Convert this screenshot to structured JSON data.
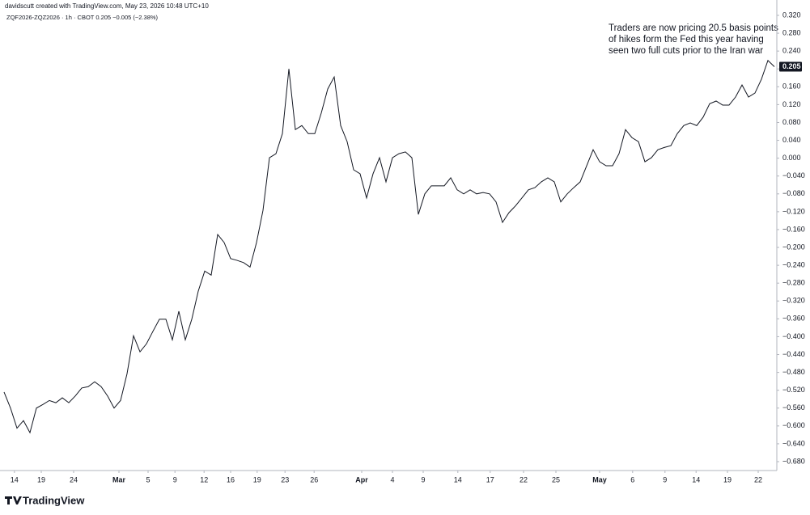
{
  "header": {
    "credit": "davidscutt created with TradingView.com, May 23, 2026 10:48 UTC+10",
    "logo": "TradingView"
  },
  "chart_data": {
    "type": "line",
    "subtitle": "ZQF2026-ZQZ2026 · 1h · CBOT  0.205  −0.005 (−2.38%)",
    "annotation": [
      "Traders are now pricing 20.5 basis points",
      "of hikes form the Fed this year having",
      "seen two full cuts prior to the Iran war"
    ],
    "color": "#131722",
    "values": [
      -0.524,
      -0.56,
      -0.605,
      -0.588,
      -0.615,
      -0.56,
      -0.552,
      -0.543,
      -0.548,
      -0.537,
      -0.548,
      -0.533,
      -0.515,
      -0.512,
      -0.501,
      -0.512,
      -0.533,
      -0.56,
      -0.543,
      -0.483,
      -0.398,
      -0.434,
      -0.416,
      -0.388,
      -0.361,
      -0.361,
      -0.407,
      -0.343,
      -0.407,
      -0.361,
      -0.298,
      -0.253,
      -0.262,
      -0.171,
      -0.189,
      -0.225,
      -0.229,
      -0.234,
      -0.244,
      -0.189,
      -0.117,
      0.001,
      0.01,
      0.055,
      0.2,
      0.064,
      0.073,
      0.055,
      0.055,
      0.101,
      0.155,
      0.182,
      0.073,
      0.037,
      -0.026,
      -0.035,
      -0.089,
      -0.035,
      0.001,
      -0.053,
      0.001,
      0.01,
      0.014,
      0.001,
      -0.126,
      -0.08,
      -0.062,
      -0.062,
      -0.062,
      -0.044,
      -0.071,
      -0.08,
      -0.071,
      -0.08,
      -0.077,
      -0.08,
      -0.098,
      -0.144,
      -0.122,
      -0.107,
      -0.089,
      -0.071,
      -0.066,
      -0.053,
      -0.044,
      -0.053,
      -0.098,
      -0.08,
      -0.066,
      -0.053,
      -0.017,
      0.019,
      -0.008,
      -0.017,
      -0.017,
      0.01,
      0.064,
      0.046,
      0.037,
      -0.008,
      0.001,
      0.019,
      0.024,
      0.028,
      0.055,
      0.073,
      0.079,
      0.073,
      0.092,
      0.122,
      0.128,
      0.119,
      0.119,
      0.137,
      0.164,
      0.137,
      0.146,
      0.177,
      0.219,
      0.205
    ],
    "xlim": [
      0,
      120
    ],
    "xticks": [
      {
        "value": 1.6,
        "label": "14"
      },
      {
        "value": 5.75,
        "label": "19"
      },
      {
        "value": 10.75,
        "label": "24"
      },
      {
        "value": 17.75,
        "label": "Mar"
      },
      {
        "value": 22.25,
        "label": "5"
      },
      {
        "value": 26.4,
        "label": "9"
      },
      {
        "value": 30.9,
        "label": "12"
      },
      {
        "value": 35,
        "label": "16"
      },
      {
        "value": 39.1,
        "label": "19"
      },
      {
        "value": 43.4,
        "label": "23"
      },
      {
        "value": 47.9,
        "label": "26"
      },
      {
        "value": 55.25,
        "label": "Apr"
      },
      {
        "value": 60,
        "label": "4"
      },
      {
        "value": 64.75,
        "label": "9"
      },
      {
        "value": 70.1,
        "label": "14"
      },
      {
        "value": 75.1,
        "label": "17"
      },
      {
        "value": 80.25,
        "label": "22"
      },
      {
        "value": 85.25,
        "label": "25"
      },
      {
        "value": 92,
        "label": "May"
      },
      {
        "value": 97.1,
        "label": "6"
      },
      {
        "value": 102.1,
        "label": "9"
      },
      {
        "value": 106.9,
        "label": "14"
      },
      {
        "value": 111.75,
        "label": "19"
      },
      {
        "value": 116.5,
        "label": "22"
      }
    ],
    "ylim": [
      -0.68,
      0.32
    ],
    "yticks": [
      {
        "value": 0.32,
        "label": "0.320"
      },
      {
        "value": 0.28,
        "label": "0.280"
      },
      {
        "value": 0.24,
        "label": "0.240"
      },
      {
        "value": 0.2,
        "label": "0.200"
      },
      {
        "value": 0.16,
        "label": "0.160"
      },
      {
        "value": 0.12,
        "label": "0.120"
      },
      {
        "value": 0.08,
        "label": "0.080"
      },
      {
        "value": 0.04,
        "label": "0.040"
      },
      {
        "value": 0,
        "label": "0.000"
      },
      {
        "value": -0.04,
        "label": "−0.040"
      },
      {
        "value": -0.08,
        "label": "−0.080"
      },
      {
        "value": -0.12,
        "label": "−0.120"
      },
      {
        "value": -0.16,
        "label": "−0.160"
      },
      {
        "value": -0.2,
        "label": "−0.200"
      },
      {
        "value": -0.24,
        "label": "−0.240"
      },
      {
        "value": -0.28,
        "label": "−0.280"
      },
      {
        "value": -0.32,
        "label": "−0.320"
      },
      {
        "value": -0.36,
        "label": "−0.360"
      },
      {
        "value": -0.4,
        "label": "−0.400"
      },
      {
        "value": -0.44,
        "label": "−0.440"
      },
      {
        "value": -0.48,
        "label": "−0.480"
      },
      {
        "value": -0.52,
        "label": "−0.520"
      },
      {
        "value": -0.56,
        "label": "−0.560"
      },
      {
        "value": -0.6,
        "label": "−0.600"
      },
      {
        "value": -0.64,
        "label": "−0.640"
      },
      {
        "value": -0.68,
        "label": "−0.680"
      }
    ],
    "grid": false
  }
}
